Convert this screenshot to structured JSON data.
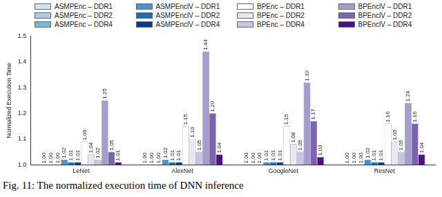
{
  "chart_data": {
    "type": "bar",
    "caption": "Fig. 11: The normalized execution time of DNN inference",
    "y_label": "Normalized Execution Time",
    "categories": [
      "LeNet",
      "AlexNet",
      "GoogleNet",
      "ResNet"
    ],
    "ylim": [
      1.0,
      1.5
    ],
    "yticks": [
      {
        "value": 1.0,
        "label": "1.0"
      },
      1.1,
      1.2,
      1.3,
      1.4,
      1.5
    ],
    "grid": false,
    "data_labels": true,
    "series": [
      {
        "name": "ASMPEnc – DDR1",
        "color": "#d3e4f3",
        "values": [
          1.0,
          1.0,
          1.0,
          1.0
        ],
        "value_labels": [
          "1.00",
          "1.00",
          "1.00",
          "1.00"
        ]
      },
      {
        "name": "ASMPEnc – DDR2",
        "color": "#aacde6",
        "values": [
          1.0,
          1.0,
          1.0,
          1.0
        ],
        "value_labels": [
          "1.00",
          "1.00",
          "1.00",
          "1.00"
        ]
      },
      {
        "name": "ASMPEnc – DDR4",
        "color": "#7db4da",
        "values": [
          1.0,
          1.0,
          1.0,
          1.0
        ],
        "value_labels": [
          "1.00",
          "1.00",
          "1.00",
          "1.00"
        ]
      },
      {
        "name": "ASMPEnclV – DDR1",
        "color": "#4a92cb",
        "values": [
          1.02,
          1.02,
          1.01,
          1.02
        ],
        "value_labels": [
          "1.02",
          "1.02",
          "1.01",
          "1.02"
        ]
      },
      {
        "name": "ASMPEnclV – DDR2",
        "color": "#1f6fb4",
        "values": [
          1.01,
          1.01,
          1.01,
          1.01
        ],
        "value_labels": [
          "1.01",
          "1.01",
          "1.01",
          "1.01"
        ]
      },
      {
        "name": "ASMPEnclV – DDR4",
        "color": "#0b3c8c",
        "values": [
          1.01,
          1.01,
          1.01,
          1.01
        ],
        "value_labels": [
          "1.01",
          "1.01",
          "1.01",
          "1.01"
        ]
      },
      {
        "name": "BPEnc – DDR1",
        "color": "#ffffff",
        "values": [
          1.09,
          1.15,
          1.15,
          1.16
        ],
        "value_labels": [
          "1.09",
          "1.15",
          "1.15",
          "1.16"
        ]
      },
      {
        "name": "BPEnc – DDR2",
        "color": "#e9e7f3",
        "values": [
          1.04,
          1.1,
          1.08,
          1.09
        ],
        "value_labels": [
          "1.04",
          "1.10",
          "1.08",
          "1.09"
        ]
      },
      {
        "name": "BPEnc – DDR4",
        "color": "#c9c5e1",
        "values": [
          1.02,
          1.05,
          1.05,
          1.05
        ],
        "value_labels": [
          "1.02",
          "1.05",
          "1.05",
          "1.05"
        ]
      },
      {
        "name": "BPEnclV – DDR1",
        "color": "#a59dcc",
        "values": [
          1.25,
          1.44,
          1.32,
          1.24
        ],
        "value_labels": [
          "1.25",
          "1.44",
          "1.32",
          "1.24"
        ]
      },
      {
        "name": "BPEnclV – DDR2",
        "color": "#7c63b1",
        "values": [
          1.05,
          1.2,
          1.17,
          1.16
        ],
        "value_labels": [
          "1.05",
          "1.20",
          "1.17",
          "1.16"
        ]
      },
      {
        "name": "BPEnclV – DDR4",
        "color": "#4c1184",
        "values": [
          1.01,
          1.04,
          1.03,
          1.04
        ],
        "value_labels": [
          "1.01",
          "1.04",
          "1.03",
          "1.04"
        ]
      }
    ]
  }
}
